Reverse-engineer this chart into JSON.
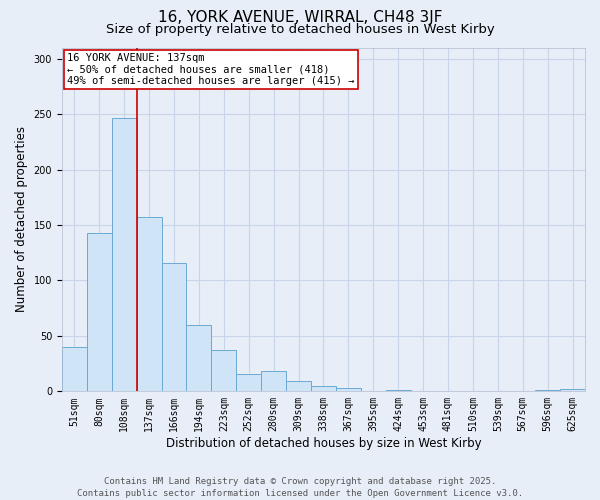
{
  "title": "16, YORK AVENUE, WIRRAL, CH48 3JF",
  "subtitle": "Size of property relative to detached houses in West Kirby",
  "xlabel": "Distribution of detached houses by size in West Kirby",
  "ylabel": "Number of detached properties",
  "categories": [
    "51sqm",
    "80sqm",
    "108sqm",
    "137sqm",
    "166sqm",
    "194sqm",
    "223sqm",
    "252sqm",
    "280sqm",
    "309sqm",
    "338sqm",
    "367sqm",
    "395sqm",
    "424sqm",
    "453sqm",
    "481sqm",
    "510sqm",
    "539sqm",
    "567sqm",
    "596sqm",
    "625sqm"
  ],
  "values": [
    40,
    143,
    246,
    157,
    116,
    60,
    37,
    16,
    18,
    9,
    5,
    3,
    0,
    1,
    0,
    0,
    0,
    0,
    0,
    1,
    2
  ],
  "bar_color": "#d0e4f7",
  "bar_edge_color": "#6aaad4",
  "vline_color": "#cc0000",
  "annotation_text": "16 YORK AVENUE: 137sqm\n← 50% of detached houses are smaller (418)\n49% of semi-detached houses are larger (415) →",
  "annotation_box_color": "#ffffff",
  "annotation_box_edge_color": "#cc0000",
  "footer_line1": "Contains HM Land Registry data © Crown copyright and database right 2025.",
  "footer_line2": "Contains public sector information licensed under the Open Government Licence v3.0.",
  "ylim": [
    0,
    310
  ],
  "background_color": "#e8eef8",
  "grid_color": "#c8d4e8",
  "title_fontsize": 11,
  "subtitle_fontsize": 9.5,
  "ylabel_fontsize": 8.5,
  "xlabel_fontsize": 8.5,
  "tick_fontsize": 7,
  "footer_fontsize": 6.5,
  "annotation_fontsize": 7.5
}
